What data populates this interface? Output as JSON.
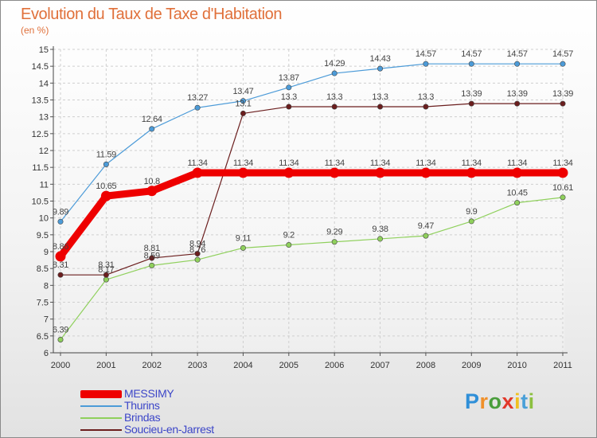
{
  "header": {
    "title": "Evolution du Taux de Taxe d'Habitation",
    "subtitle": "(en %)"
  },
  "brand": {
    "letters": [
      "P",
      "r",
      "o",
      "x",
      "i",
      "t",
      "i"
    ],
    "colors": [
      "#2f8fd8",
      "#f0902a",
      "#4a9e3c",
      "#e2382a",
      "#f0c020",
      "#4aa0d8",
      "#8cc040"
    ]
  },
  "chart_data": {
    "type": "line",
    "title": "Evolution du Taux de Taxe d'Habitation",
    "subtitle": "(en %)",
    "xlabel": "",
    "ylabel": "",
    "categories": [
      "2000",
      "2001",
      "2002",
      "2003",
      "2004",
      "2005",
      "2006",
      "2007",
      "2008",
      "2009",
      "2010",
      "2011"
    ],
    "ylim": [
      6,
      15
    ],
    "yticks": [
      "6",
      "6.5",
      "7",
      "7.5",
      "8",
      "8.5",
      "9",
      "9.5",
      "10",
      "10.5",
      "11",
      "11.5",
      "12",
      "12.5",
      "13",
      "13.5",
      "14",
      "14.5",
      "15"
    ],
    "grid": true,
    "legend_position": "bottom-left",
    "series": [
      {
        "name": "MESSIMY",
        "color": "#ee0000",
        "values": [
          8.86,
          10.65,
          10.8,
          11.34,
          11.34,
          11.34,
          11.34,
          11.34,
          11.34,
          11.34,
          11.34,
          11.34
        ],
        "labels": [
          "8.86",
          "10.65",
          "10.8",
          "11.34",
          "11.34",
          "11.34",
          "11.34",
          "11.34",
          "11.34",
          "11.34",
          "11.34",
          "11.34"
        ]
      },
      {
        "name": "Thurins",
        "color": "#4c9bd8",
        "values": [
          9.89,
          11.59,
          12.64,
          13.27,
          13.47,
          13.87,
          14.29,
          14.43,
          14.57,
          14.57,
          14.57,
          14.57
        ],
        "labels": [
          "9.89",
          "11.59",
          "12.64",
          "13.27",
          "13.47",
          "13.87",
          "14.29",
          "14.43",
          "14.57",
          "14.57",
          "14.57",
          "14.57"
        ]
      },
      {
        "name": "Brindas",
        "color": "#8fd05c",
        "values": [
          6.39,
          8.17,
          8.59,
          8.76,
          9.11,
          9.2,
          9.29,
          9.38,
          9.47,
          9.9,
          10.45,
          10.61
        ],
        "labels": [
          "6.39",
          "8.17",
          "8.59",
          "8.76",
          "9.11",
          "9.2",
          "9.29",
          "9.38",
          "9.47",
          "9.9",
          "10.45",
          "10.61"
        ]
      },
      {
        "name": "Soucieu-en-Jarrest",
        "color": "#6b1e1e",
        "values": [
          8.31,
          8.31,
          8.81,
          8.94,
          13.1,
          13.3,
          13.3,
          13.3,
          13.3,
          13.39,
          13.39,
          13.39
        ],
        "labels": [
          "8.31",
          "8.31",
          "8.81",
          "8.94",
          "13.1",
          "13.3",
          "13.3",
          "13.3",
          "13.3",
          "13.39",
          "13.39",
          "13.39"
        ]
      }
    ]
  }
}
